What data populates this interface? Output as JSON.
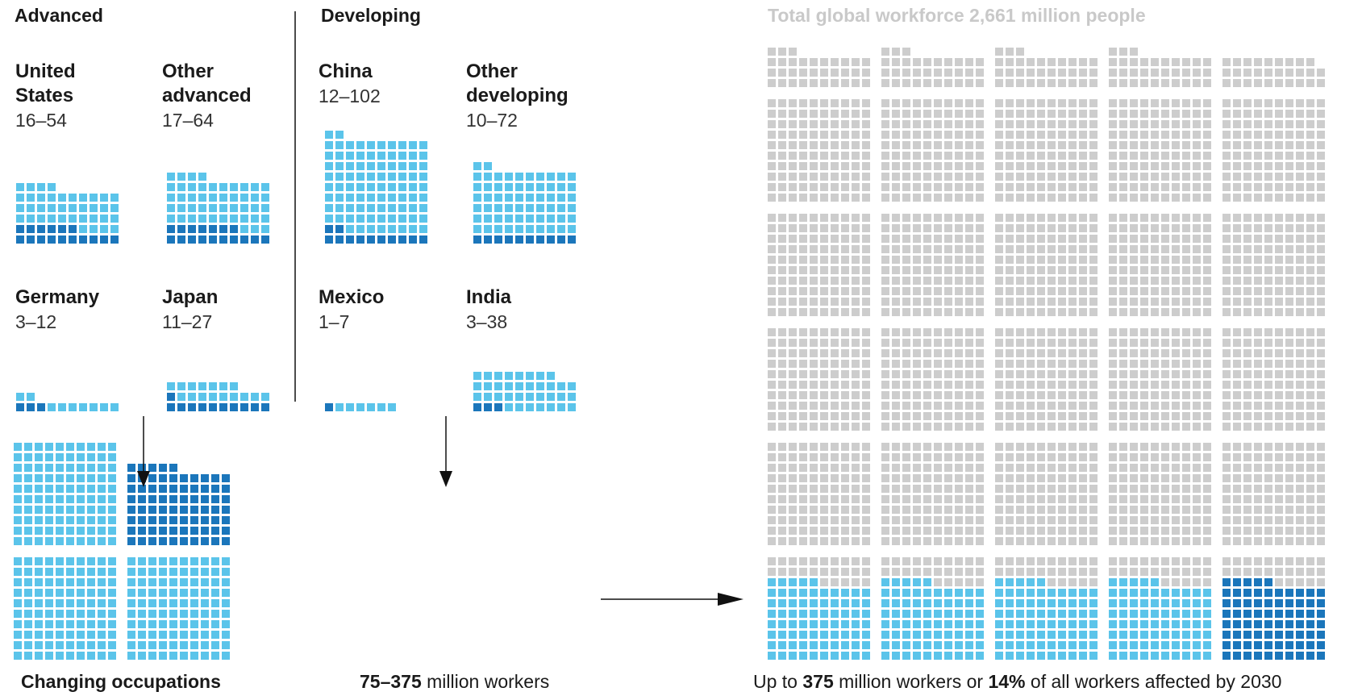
{
  "headers": {
    "advanced": "Advanced",
    "developing": "Developing"
  },
  "total_title": "Total global workforce 2,661 million people",
  "footer": {
    "left_label": "Changing occupations",
    "mid_bold": "75–375",
    "mid_rest": " million workers",
    "right_pre": "Up to ",
    "right_b1": "375",
    "right_mid": " million workers or ",
    "right_b2": "14%",
    "right_post": " of all workers affected by 2030"
  },
  "colors": {
    "light": "#5bc4ea",
    "dark": "#1b76bb",
    "gray": "#cdcdcd",
    "line": "#111111"
  },
  "chart_data": {
    "type": "waffle",
    "title": "Total global workforce 2,661 million people",
    "countries": [
      {
        "group": "Advanced",
        "name": [
          "United",
          "States"
        ],
        "range": "16–54",
        "low": 16,
        "high": 54
      },
      {
        "group": "Advanced",
        "name": [
          "Other",
          "advanced"
        ],
        "range": "17–64",
        "low": 17,
        "high": 64
      },
      {
        "group": "Advanced",
        "name": [
          "Germany"
        ],
        "range": "3–12",
        "low": 3,
        "high": 12
      },
      {
        "group": "Advanced",
        "name": [
          "Japan"
        ],
        "range": "11–27",
        "low": 11,
        "high": 27
      },
      {
        "group": "Developing",
        "name": [
          "China"
        ],
        "range": "12–102",
        "low": 12,
        "high": 102
      },
      {
        "group": "Developing",
        "name": [
          "Other",
          "developing"
        ],
        "range": "10–72",
        "low": 10,
        "high": 72
      },
      {
        "group": "Developing",
        "name": [
          "Mexico"
        ],
        "range": "1–7",
        "low": 1,
        "high": 7
      },
      {
        "group": "Developing",
        "name": [
          "India"
        ],
        "range": "3–38",
        "low": 3,
        "high": 38
      }
    ],
    "combined": {
      "low": 75,
      "high": 375,
      "unit": "million workers"
    },
    "global": {
      "total": 2661,
      "affected": 375,
      "share_percent": 14,
      "year": 2030
    }
  }
}
